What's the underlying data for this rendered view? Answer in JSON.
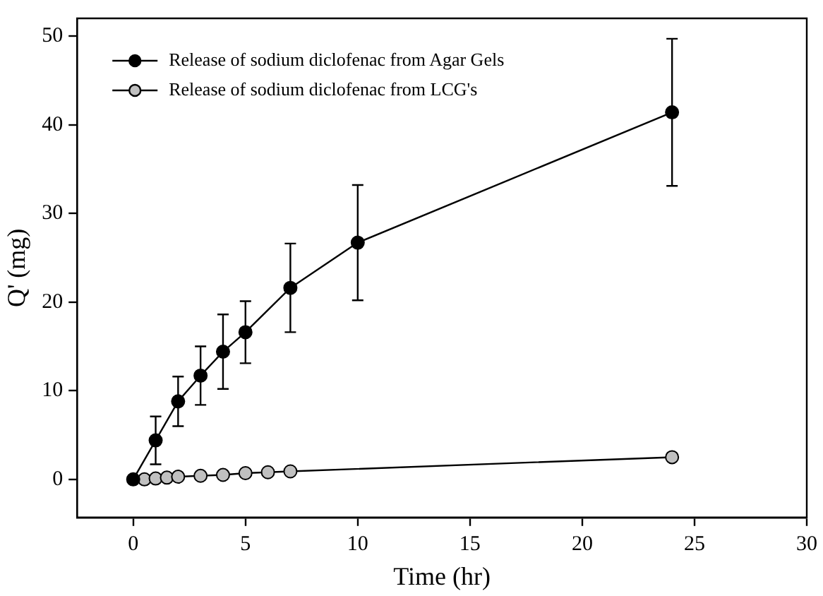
{
  "chart_data": {
    "type": "line",
    "xlabel": "Time (hr)",
    "ylabel": "Q' (mg)",
    "xlim": [
      -2.5,
      30
    ],
    "xticks": [
      0,
      5,
      10,
      15,
      20,
      25,
      30
    ],
    "ylim": [
      -4.3,
      52
    ],
    "yticks": [
      0,
      10,
      20,
      30,
      40,
      50
    ],
    "grid": false,
    "legend": "top left",
    "marker": "circle",
    "line_style": "solid",
    "series": [
      {
        "name": "Release of sodium diclofenac from Agar Gels",
        "color": "#000000",
        "x": [
          0,
          1,
          2,
          3,
          4,
          5,
          7,
          10,
          24
        ],
        "values": [
          0,
          4.4,
          8.8,
          11.7,
          14.4,
          16.6,
          21.6,
          26.7,
          41.4
        ],
        "errors": [
          null,
          2.7,
          2.8,
          3.3,
          4.2,
          3.5,
          5,
          6.5,
          8.3
        ]
      },
      {
        "name": "Release of sodium diclofenac from LCG's",
        "color": "#c0c0c0",
        "x": [
          0.5,
          1,
          1.5,
          2,
          3,
          4,
          5,
          6,
          7,
          24
        ],
        "values": [
          0,
          0.1,
          0.2,
          0.3,
          0.4,
          0.5,
          0.7,
          0.8,
          0.9,
          2.5
        ]
      }
    ]
  }
}
